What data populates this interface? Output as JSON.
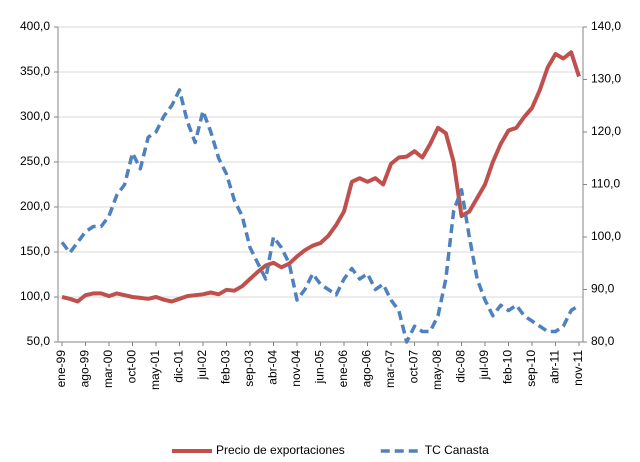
{
  "chart_data": {
    "type": "line",
    "categories": [
      "ene-99",
      null,
      null,
      "ago-99",
      null,
      null,
      "mar-00",
      null,
      null,
      "oct-00",
      null,
      null,
      "may-01",
      null,
      null,
      "dic-01",
      null,
      null,
      "jul-02",
      null,
      null,
      "feb-03",
      null,
      null,
      "sep-03",
      null,
      null,
      "abr-04",
      null,
      null,
      "nov-04",
      null,
      null,
      "jun-05",
      null,
      null,
      "ene-06",
      null,
      null,
      "ago-06",
      null,
      null,
      "mar-07",
      null,
      null,
      "oct-07",
      null,
      null,
      "may-08",
      null,
      null,
      "dic-08",
      null,
      null,
      "jul-09",
      null,
      null,
      "feb-10",
      null,
      null,
      "sep-10",
      null,
      null,
      "abr-11",
      null,
      null,
      "nov-11"
    ],
    "series": [
      {
        "name": "Precio de exportaciones",
        "color": "#c0504d",
        "dashed": false,
        "values": [
          100,
          98,
          95,
          102,
          104,
          104,
          101,
          104,
          102,
          100,
          99,
          98,
          100,
          97,
          95,
          98,
          101,
          102,
          103,
          105,
          103,
          108,
          107,
          112,
          120,
          128,
          135,
          138,
          133,
          137,
          145,
          152,
          157,
          160,
          168,
          180,
          195,
          228,
          232,
          228,
          232,
          225,
          248,
          255,
          256,
          262,
          255,
          270,
          288,
          282,
          250,
          190,
          195,
          210,
          225,
          250,
          270,
          285,
          288,
          300,
          310,
          330,
          355,
          370,
          365,
          372,
          345
        ]
      },
      {
        "name": "TC Canasta",
        "color": "#4f81bd",
        "dashed": true,
        "axis": "y2",
        "values": [
          99,
          97,
          99,
          101,
          102,
          102,
          104,
          108,
          110,
          116,
          113,
          119,
          120,
          123,
          125,
          128,
          122,
          118,
          124,
          120,
          115,
          112,
          107,
          104,
          98,
          95,
          92,
          100,
          98,
          95,
          88,
          90,
          93,
          91,
          90,
          89,
          92,
          94,
          92,
          93,
          90,
          91,
          88,
          86,
          80,
          83,
          82,
          82,
          85,
          92,
          105,
          109,
          100,
          92,
          88,
          85,
          87,
          86,
          87,
          85,
          84,
          83,
          82,
          82,
          83,
          86,
          87
        ]
      }
    ],
    "ylim": [
      50,
      400
    ],
    "yticks": [
      {
        "value": 50,
        "label": "50,0"
      },
      {
        "value": 100,
        "label": "100,0"
      },
      {
        "value": 150,
        "label": "150,0"
      },
      {
        "value": 200,
        "label": "200,0"
      },
      {
        "value": 250,
        "label": "250,0"
      },
      {
        "value": 300,
        "label": "300,0"
      },
      {
        "value": 350,
        "label": "350,0"
      },
      {
        "value": 400,
        "label": "400,0"
      }
    ],
    "y2lim": [
      80,
      140
    ],
    "y2ticks": [
      {
        "value": 80,
        "label": "80,0"
      },
      {
        "value": 90,
        "label": "90,0"
      },
      {
        "value": 100,
        "label": "100,0"
      },
      {
        "value": 110,
        "label": "110,0"
      },
      {
        "value": 120,
        "label": "120,0"
      },
      {
        "value": 130,
        "label": "130,0"
      },
      {
        "value": 140,
        "label": "140,0"
      }
    ],
    "grid": true,
    "legend": "bottom"
  }
}
